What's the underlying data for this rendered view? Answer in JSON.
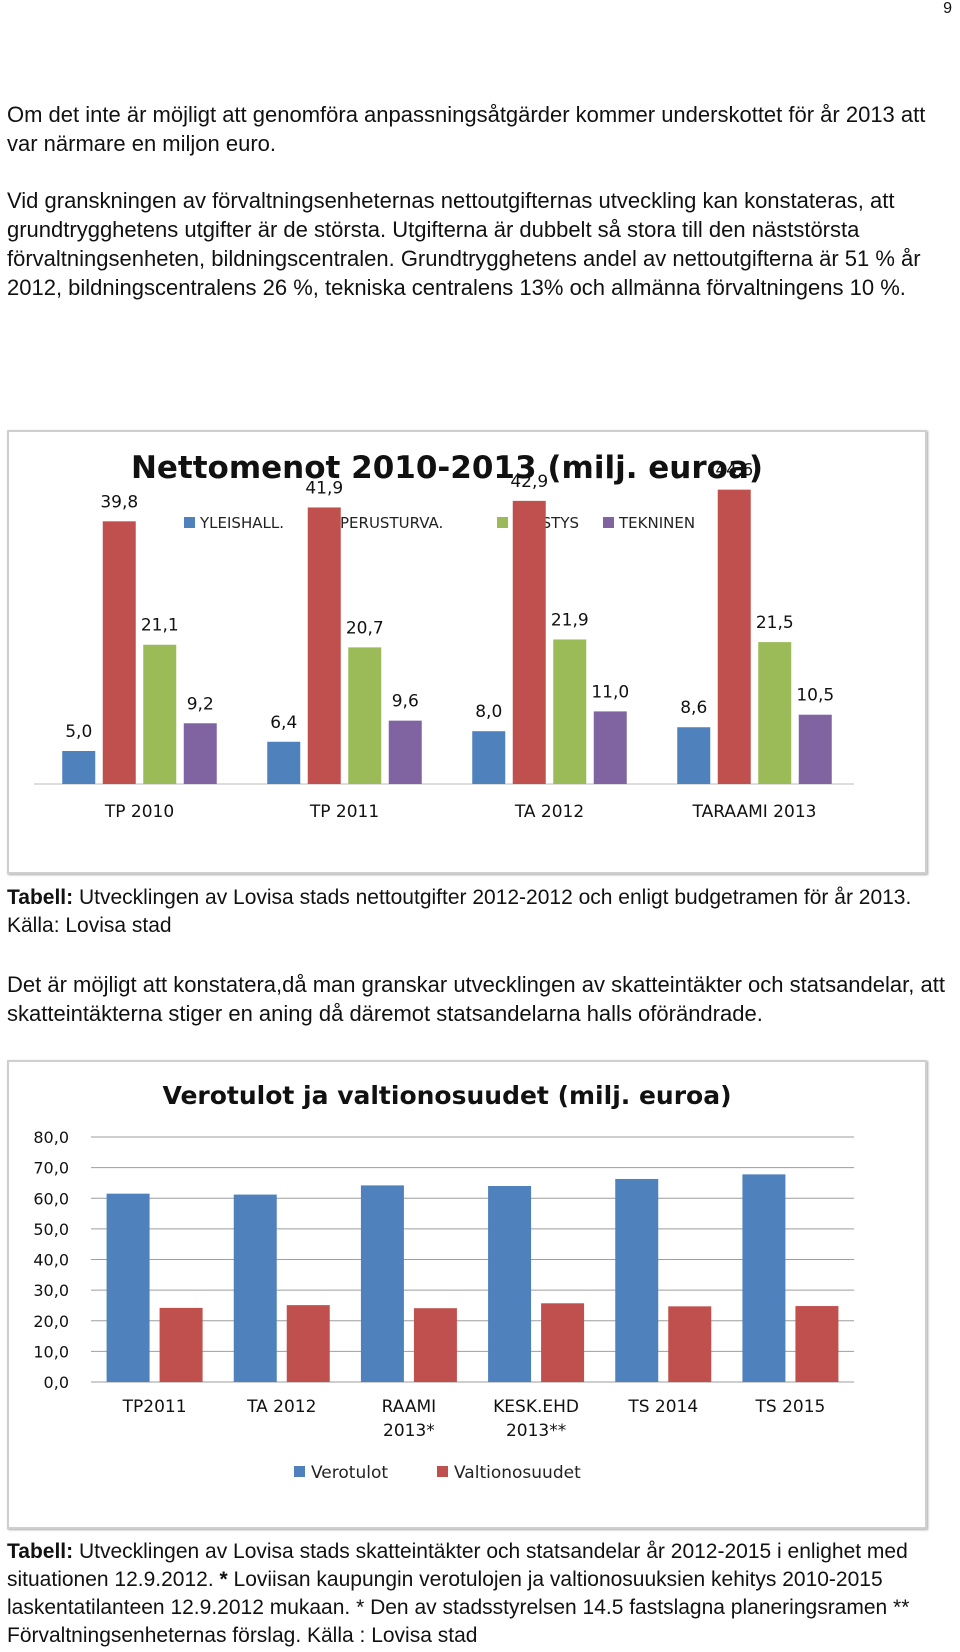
{
  "page_number": "9",
  "paragraphs": [
    "Om det inte är möjligt att genomföra anpassningsåtgärder kommer underskottet för år 2013 att var närmare en miljon euro.",
    "Vid granskningen av förvaltningsenheternas nettoutgifternas utveckling kan konstateras, att grundtrygghetens utgifter är de största. Utgifterna är dubbelt så stora till den näststörsta förvaltningsenheten, bildningscentralen. Grundtrygghetens andel av nettoutgifterna är 51 % år 2012, bildningscentralens 26 %, tekniska centralens 13% och allmänna förvaltningens 10 %.",
    "Det är möjligt att konstatera,då man granskar utvecklingen av skatteintäkter och statsandelar, att skatteintäkterna stiger en aning då däremot statsandelarna halls oförändrade."
  ],
  "caption1": {
    "label": "Tabell:",
    "text": " Utvecklingen av Lovisa stads nettoutgifter 2012-2012 och enligt budgetramen för år 2013. Källa: Lovisa stad"
  },
  "caption2": {
    "label": "Tabell:",
    "text1": " Utvecklingen av Lovisa stads skatteintäkter och statsandelar år 2012-2015 i enlighet med situationen 12.9.2012. ",
    "star": "*",
    "text2": " Loviisan kaupungin verotulojen ja valtionosuuksien kehitys 2010-2015 laskentatilanteen 12.9.2012 mukaan. * Den av stadsstyrelsen 14.5 fastslagna planeringsramen ** Förvaltningsenheternas förslag. Källa : Lovisa stad"
  },
  "chart_data": [
    {
      "type": "bar",
      "title": "Nettomenot 2010-2013 (milj. euroa)",
      "categories": [
        "TP 2010",
        "TP 2011",
        "TA 2012",
        "TARAAMI 2013"
      ],
      "series": [
        {
          "name": "YLEISHALL.",
          "color": "#4f81bd",
          "values": [
            5.0,
            6.4,
            8.0,
            8.6
          ],
          "labels": [
            "5,0",
            "6,4",
            "8,0",
            "8,6"
          ]
        },
        {
          "name": "PERUSTURVA.",
          "color": "#c0504d",
          "values": [
            39.8,
            41.9,
            42.9,
            44.6
          ],
          "labels": [
            "39,8",
            "41,9",
            "42,9",
            "44,6"
          ]
        },
        {
          "name": "SIVISTYS",
          "color": "#9bbb59",
          "values": [
            21.1,
            20.7,
            21.9,
            21.5
          ],
          "labels": [
            "21,1",
            "20,7",
            "21,9",
            "21,5"
          ]
        },
        {
          "name": "TEKNINEN",
          "color": "#8064a2",
          "values": [
            9.2,
            9.6,
            11.0,
            10.5
          ],
          "labels": [
            "9,2",
            "9,6",
            "11,0",
            "10,5"
          ]
        }
      ],
      "ylim": [
        0,
        50
      ],
      "grid": false,
      "legend": "top"
    },
    {
      "type": "bar",
      "title": "Verotulot ja valtionosuudet (milj. euroa)",
      "categories": [
        [
          "TP2011"
        ],
        [
          "TA 2012"
        ],
        [
          "RAAMI",
          "2013*"
        ],
        [
          "KESK.EHD",
          "2013**"
        ],
        [
          "TS 2014"
        ],
        [
          "TS 2015"
        ]
      ],
      "series": [
        {
          "name": "Verotulot",
          "color": "#4f81bd",
          "values": [
            61.5,
            61.2,
            64.2,
            64.0,
            66.3,
            67.8
          ]
        },
        {
          "name": "Valtionosuudet",
          "color": "#c0504d",
          "values": [
            24.2,
            25.1,
            24.1,
            25.7,
            24.7,
            24.8
          ]
        }
      ],
      "yticks": [
        "0,0",
        "10,0",
        "20,0",
        "30,0",
        "40,0",
        "50,0",
        "60,0",
        "70,0",
        "80,0"
      ],
      "ylim": [
        0,
        80
      ],
      "grid": true,
      "legend": "bottom"
    }
  ]
}
